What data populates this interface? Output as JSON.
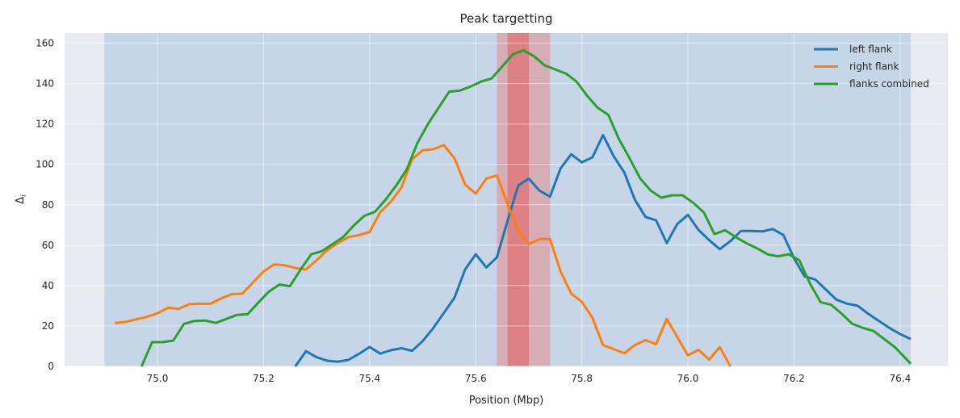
{
  "chart_data": {
    "type": "line",
    "title": "Peak targetting",
    "xlabel": "Position (Mbp)",
    "ylabel": "Δ",
    "ylabel_subscript": "i",
    "xlim": [
      74.825,
      76.49
    ],
    "ylim": [
      0,
      165
    ],
    "xticks": [
      75.0,
      75.2,
      75.4,
      75.6,
      75.8,
      76.0,
      76.2,
      76.4
    ],
    "xtick_labels": [
      "75.0",
      "75.2",
      "75.4",
      "75.6",
      "75.8",
      "76.0",
      "76.2",
      "76.4"
    ],
    "yticks": [
      0,
      20,
      40,
      60,
      80,
      100,
      120,
      140,
      160
    ],
    "ytick_labels": [
      "0",
      "20",
      "40",
      "60",
      "80",
      "100",
      "120",
      "140",
      "160"
    ],
    "grid": true,
    "legend_position": "top-right",
    "background_color": "#eaeaf2",
    "grid_color": "#ffffff",
    "regions": [
      {
        "x0": 74.9,
        "x1": 76.42,
        "color": "#a8c4e0",
        "opacity": 0.55
      },
      {
        "x0": 75.64,
        "x1": 75.74,
        "color": "#e48a8a",
        "opacity": 0.55
      },
      {
        "x0": 75.66,
        "x1": 75.7,
        "color": "#e06262",
        "opacity": 0.6
      }
    ],
    "series": [
      {
        "name": "left flank",
        "color": "#1f77b4",
        "x": [
          75.26,
          75.28,
          75.3,
          75.32,
          75.34,
          75.36,
          75.38,
          75.4,
          75.42,
          75.44,
          75.46,
          75.48,
          75.5,
          75.52,
          75.54,
          75.56,
          75.58,
          75.6,
          75.62,
          75.64,
          75.66,
          75.68,
          75.7,
          75.72,
          75.74,
          75.76,
          75.78,
          75.8,
          75.82,
          75.84,
          75.86,
          75.88,
          75.9,
          75.92,
          75.94,
          75.96,
          75.98,
          76.0,
          76.02,
          76.04,
          76.06,
          76.08,
          76.1,
          76.12,
          76.14,
          76.16,
          76.18,
          76.2,
          76.22,
          76.24,
          76.26,
          76.28,
          76.3,
          76.32,
          76.34,
          76.36,
          76.38,
          76.4,
          76.42
        ],
        "y": [
          0,
          7.5,
          4.5,
          2.8,
          2.3,
          3.2,
          6.2,
          9.6,
          6.3,
          8.0,
          9.0,
          7.7,
          12.5,
          19,
          26.5,
          34,
          48,
          55.5,
          49,
          54,
          72,
          89.5,
          93,
          87,
          84,
          98,
          105,
          101,
          103.5,
          114.5,
          104,
          96,
          82.5,
          74,
          72.3,
          61,
          70.5,
          75,
          67.5,
          62.5,
          58,
          62,
          67,
          67,
          66.8,
          68,
          65,
          53.5,
          44.5,
          43,
          38,
          33,
          31,
          30,
          26,
          22.5,
          19,
          16,
          13.5
        ]
      },
      {
        "name": "right flank",
        "color": "#ff7f0e",
        "x": [
          74.92,
          74.94,
          74.96,
          74.98,
          75.0,
          75.02,
          75.04,
          75.06,
          75.08,
          75.1,
          75.12,
          75.14,
          75.16,
          75.18,
          75.2,
          75.22,
          75.24,
          75.26,
          75.28,
          75.3,
          75.32,
          75.34,
          75.36,
          75.38,
          75.4,
          75.42,
          75.44,
          75.46,
          75.48,
          75.5,
          75.52,
          75.54,
          75.56,
          75.58,
          75.6,
          75.62,
          75.64,
          75.66,
          75.68,
          75.7,
          75.72,
          75.74,
          75.76,
          75.78,
          75.8,
          75.82,
          75.84,
          75.86,
          75.88,
          75.9,
          75.92,
          75.94,
          75.96,
          75.98,
          76.0,
          76.02,
          76.04,
          76.06,
          76.08
        ],
        "y": [
          21.5,
          22,
          23.3,
          24.5,
          26.3,
          29,
          28.5,
          30.8,
          31,
          31,
          33.6,
          35.7,
          36,
          41.5,
          47,
          50.5,
          50,
          48.7,
          48,
          52.5,
          57.5,
          61,
          64,
          65,
          66.5,
          76.3,
          81.5,
          88.5,
          102.5,
          107,
          107.5,
          109.5,
          103,
          90,
          85.5,
          93,
          94.5,
          80.5,
          67,
          60.5,
          63,
          63,
          47,
          36,
          32,
          24,
          10.5,
          8.5,
          6.5,
          10.5,
          13,
          11,
          23.5,
          14.5,
          5.5,
          8.2,
          3.3,
          9.5,
          0
        ]
      },
      {
        "name": "flanks combined",
        "color": "#2ca02c",
        "x": [
          74.97,
          74.99,
          75.01,
          75.03,
          75.05,
          75.07,
          75.09,
          75.11,
          75.13,
          75.15,
          75.17,
          75.19,
          75.21,
          75.23,
          75.25,
          75.27,
          75.29,
          75.31,
          75.33,
          75.35,
          75.37,
          75.39,
          75.41,
          75.43,
          75.45,
          75.47,
          75.49,
          75.51,
          75.53,
          75.55,
          75.57,
          75.59,
          75.61,
          75.63,
          75.65,
          75.67,
          75.69,
          75.71,
          75.73,
          75.75,
          75.77,
          75.79,
          75.81,
          75.83,
          75.85,
          75.87,
          75.89,
          75.91,
          75.93,
          75.95,
          75.97,
          75.99,
          76.01,
          76.03,
          76.05,
          76.07,
          76.09,
          76.11,
          76.13,
          76.15,
          76.17,
          76.19,
          76.21,
          76.23,
          76.25,
          76.27,
          76.29,
          76.31,
          76.33,
          76.35,
          76.37,
          76.39,
          76.42
        ],
        "y": [
          0,
          12,
          12,
          12.8,
          21,
          22.5,
          22.7,
          21.5,
          23.5,
          25.5,
          25.8,
          31.5,
          37,
          40.5,
          39.7,
          48,
          55.5,
          57,
          60.5,
          64,
          69.7,
          74.5,
          76.5,
          82.5,
          89.5,
          97.5,
          110.5,
          120,
          128,
          136,
          136.5,
          138.5,
          141,
          142.5,
          148.5,
          154.5,
          156.5,
          153.5,
          149,
          147,
          145,
          141,
          134,
          128,
          124.5,
          112.5,
          103,
          93,
          87,
          83.5,
          84.7,
          84.7,
          81,
          76.2,
          65.5,
          67.4,
          64,
          61,
          58.5,
          55.5,
          54.5,
          55.5,
          52.5,
          41,
          31.8,
          30.5,
          26,
          21,
          19,
          17.5,
          13.5,
          9.5,
          1.3
        ]
      }
    ]
  }
}
